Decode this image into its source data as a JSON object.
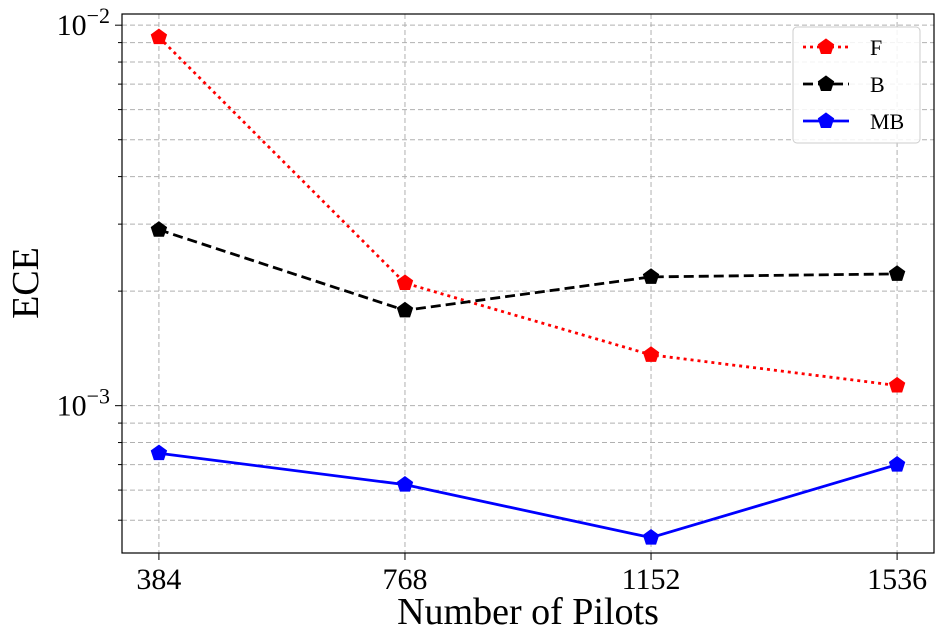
{
  "chart_data": {
    "type": "line",
    "xlabel": "Number of Pilots",
    "ylabel": "ECE",
    "x": [
      384,
      768,
      1152,
      1536
    ],
    "x_tick_labels": [
      "384",
      "768",
      "1152",
      "1536"
    ],
    "y_scale": "log",
    "ylim": [
      0.00041,
      0.0107
    ],
    "y_major_ticks": [
      {
        "value": 0.001,
        "base": "10",
        "exp": "−3"
      },
      {
        "value": 0.01,
        "base": "10",
        "exp": "−2"
      }
    ],
    "grid": true,
    "legend_position": "top-right",
    "series": [
      {
        "name": "F",
        "color": "#ff0000",
        "line_style": "dotted",
        "marker": "pentagon",
        "values": [
          0.0093,
          0.0021,
          0.00136,
          0.00113
        ]
      },
      {
        "name": "B",
        "color": "#000000",
        "line_style": "dashed",
        "marker": "pentagon",
        "values": [
          0.0029,
          0.00178,
          0.00218,
          0.00222
        ]
      },
      {
        "name": "MB",
        "color": "#0000ff",
        "line_style": "solid",
        "marker": "pentagon",
        "values": [
          0.00075,
          0.00062,
          0.00045,
          0.0007
        ]
      }
    ]
  }
}
